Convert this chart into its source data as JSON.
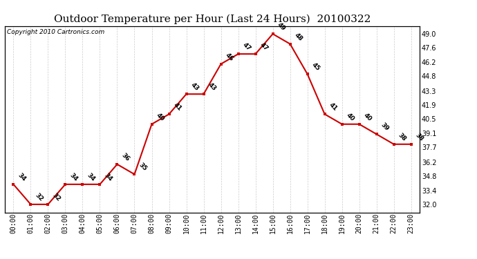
{
  "title": "Outdoor Temperature per Hour (Last 24 Hours)  20100322",
  "copyright": "Copyright 2010 Cartronics.com",
  "hours": [
    "00:00",
    "01:00",
    "02:00",
    "03:00",
    "04:00",
    "05:00",
    "06:00",
    "07:00",
    "08:00",
    "09:00",
    "10:00",
    "11:00",
    "12:00",
    "13:00",
    "14:00",
    "15:00",
    "16:00",
    "17:00",
    "18:00",
    "19:00",
    "20:00",
    "21:00",
    "22:00",
    "23:00"
  ],
  "temps": [
    34,
    32,
    32,
    34,
    34,
    34,
    36,
    35,
    40,
    41,
    43,
    43,
    46,
    47,
    47,
    49,
    48,
    45,
    41,
    40,
    40,
    39,
    38,
    38
  ],
  "line_color": "#cc0000",
  "marker_color": "#cc0000",
  "background_color": "#ffffff",
  "grid_color": "#cccccc",
  "title_fontsize": 11,
  "tick_fontsize": 7,
  "copyright_fontsize": 6.5,
  "annot_fontsize": 6.5,
  "yticks": [
    32.0,
    33.4,
    34.8,
    36.2,
    37.7,
    39.1,
    40.5,
    41.9,
    43.3,
    44.8,
    46.2,
    47.6,
    49.0
  ],
  "ylim": [
    31.2,
    49.8
  ]
}
